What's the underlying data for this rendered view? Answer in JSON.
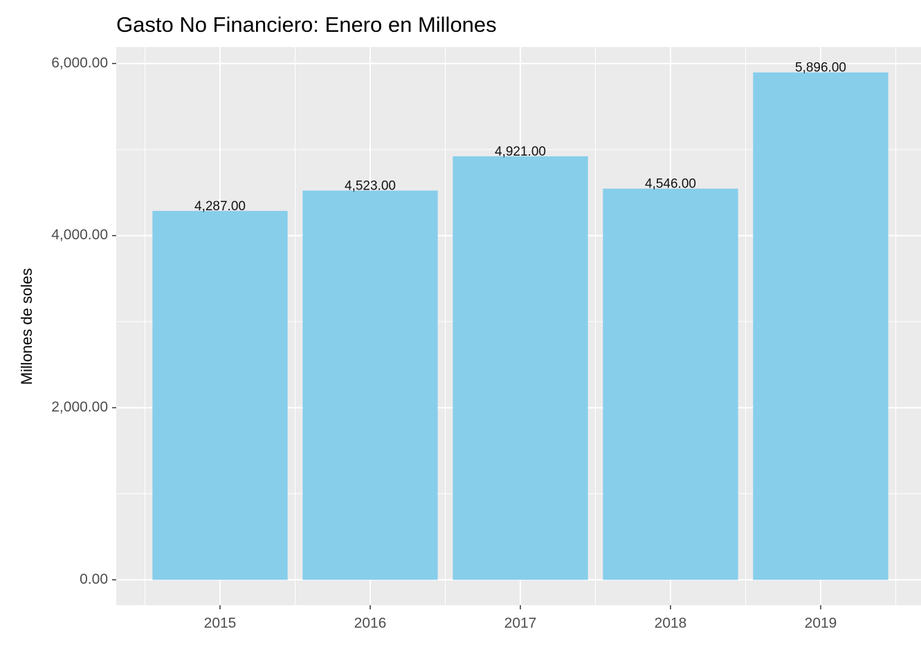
{
  "chart_data": {
    "type": "bar",
    "title": "Gasto No Financiero:  Enero  en Millones",
    "ylabel": "Millones de soles",
    "categories": [
      "2015",
      "2016",
      "2017",
      "2018",
      "2019"
    ],
    "values": [
      4287,
      4523,
      4921,
      4546,
      5896
    ],
    "value_labels": [
      "4,287.00",
      "4,523.00",
      "4,921.00",
      "4,546.00",
      "5,896.00"
    ],
    "color": "#87ceeb",
    "ylim": [
      -295,
      6191
    ],
    "yticks": [
      {
        "value": 0,
        "label": "0.00"
      },
      {
        "value": 2000,
        "label": "2,000.00"
      },
      {
        "value": 4000,
        "label": "4,000.00"
      },
      {
        "value": 6000,
        "label": "6,000.00"
      }
    ],
    "yticks_minor": [
      1000,
      3000,
      5000
    ],
    "grid": true
  }
}
